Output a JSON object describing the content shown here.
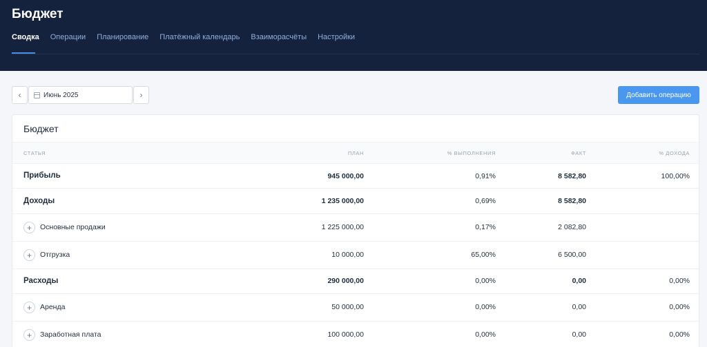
{
  "app": {
    "title": "Бюджет"
  },
  "tabs": [
    "Сводка",
    "Операции",
    "Планирование",
    "Платёжный календарь",
    "Взаиморасчёты",
    "Настройки"
  ],
  "toolbar": {
    "month_label": "Июнь 2025",
    "add_label": "Добавить операцию"
  },
  "card": {
    "title": "Бюджет"
  },
  "columns": [
    "Статья",
    "План",
    "% выполнения",
    "Факт",
    "% дохода"
  ],
  "rows": [
    {
      "name": "Прибыль",
      "plan": "945 000,00",
      "completion": "0,91%",
      "fact": "8 582,80",
      "income_pct": "100,00%",
      "type": "group"
    },
    {
      "name": "Доходы",
      "plan": "1 235 000,00",
      "completion": "0,69%",
      "fact": "8 582,80",
      "income_pct": "",
      "type": "group"
    },
    {
      "name": "Основные продажи",
      "plan": "1 225 000,00",
      "completion": "0,17%",
      "fact": "2 082,80",
      "income_pct": "",
      "type": "item"
    },
    {
      "name": "Отгрузка",
      "plan": "10 000,00",
      "completion": "65,00%",
      "fact": "6 500,00",
      "income_pct": "",
      "type": "item"
    },
    {
      "name": "Расходы",
      "plan": "290 000,00",
      "completion": "0,00%",
      "fact": "0,00",
      "income_pct": "0,00%",
      "type": "group"
    },
    {
      "name": "Аренда",
      "plan": "50 000,00",
      "completion": "0,00%",
      "fact": "0,00",
      "income_pct": "0,00%",
      "type": "item"
    },
    {
      "name": "Заработная плата",
      "plan": "100 000,00",
      "completion": "0,00%",
      "fact": "0,00",
      "income_pct": "0,00%",
      "type": "item"
    }
  ],
  "colors": {
    "header_bg": "#15223d",
    "accent": "#4a97f0"
  },
  "icons": {
    "prev": "chevron-left-icon",
    "next": "chevron-right-icon",
    "calendar": "calendar-icon",
    "expand": "plus-icon"
  }
}
